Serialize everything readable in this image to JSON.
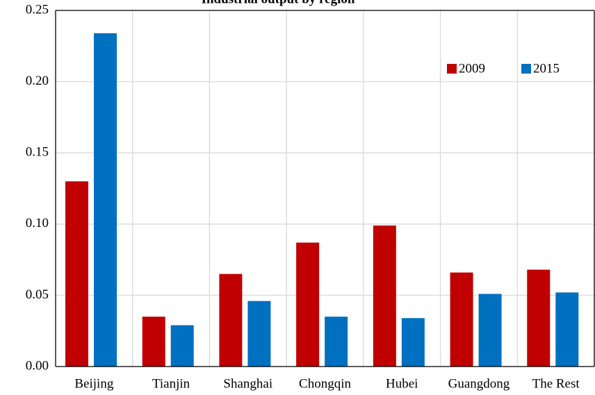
{
  "chart_data": {
    "type": "bar",
    "title": "Industrial output by region",
    "categories": [
      "Beijing",
      "Tianjin",
      "Shanghai",
      "Chongqin",
      "Hubei",
      "Guangdong",
      "The Rest"
    ],
    "series": [
      {
        "name": "2009",
        "color": "#c00000",
        "values": [
          0.13,
          0.035,
          0.065,
          0.087,
          0.099,
          0.066,
          0.068
        ]
      },
      {
        "name": "2015",
        "color": "#0070c0",
        "values": [
          0.234,
          0.029,
          0.046,
          0.035,
          0.034,
          0.051,
          0.052
        ]
      }
    ],
    "ylim": [
      0,
      0.25
    ],
    "yticks": [
      {
        "value": 0,
        "label": "0.00"
      },
      {
        "value": 0.05,
        "label": "0.05"
      },
      {
        "value": 0.1,
        "label": "0.10"
      },
      {
        "value": 0.15,
        "label": "0.15"
      },
      {
        "value": 0.2,
        "label": "0.20"
      },
      {
        "value": 0.25,
        "label": "0.25"
      }
    ],
    "grid": true,
    "legend": "upper right"
  }
}
